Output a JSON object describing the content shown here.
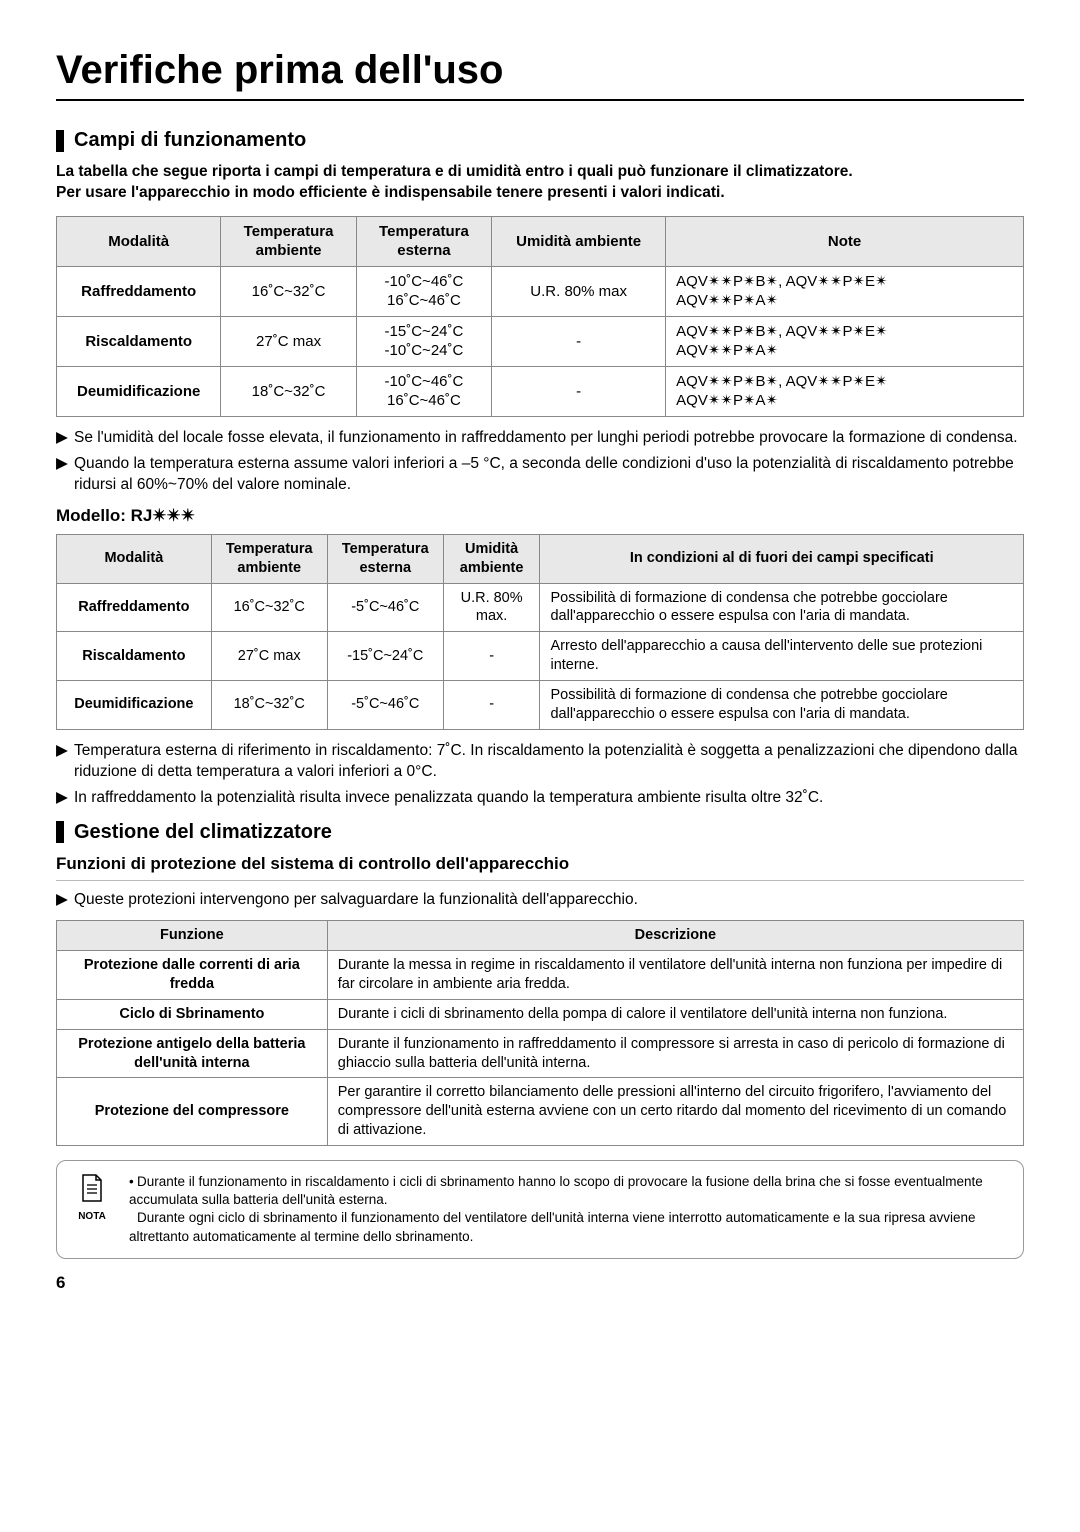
{
  "title": "Verifiche prima dell'uso",
  "section1": {
    "heading": "Campi di funzionamento",
    "intro1": "La tabella che segue riporta i campi di temperatura e di umidità entro i quali può funzionare il climatizzatore.",
    "intro2": "Per usare l'apparecchio in modo efficiente è indispensabile tenere presenti i valori indicati."
  },
  "table1": {
    "headers": [
      "Modalità",
      "Temperatura ambiente",
      "Temperatura esterna",
      "Umidità ambiente",
      "Note"
    ],
    "rows": [
      {
        "mode": "Raffreddamento",
        "amb": "16˚C~32˚C",
        "ext": "-10˚C~46˚C\n16˚C~46˚C",
        "hum": "U.R. 80% max",
        "note": "AQV✴✴P✴B✴, AQV✴✴P✴E✴\nAQV✴✴P✴A✴"
      },
      {
        "mode": "Riscaldamento",
        "amb": "27˚C max",
        "ext": "-15˚C~24˚C\n-10˚C~24˚C",
        "hum": "-",
        "note": "AQV✴✴P✴B✴, AQV✴✴P✴E✴\nAQV✴✴P✴A✴"
      },
      {
        "mode": "Deumidificazione",
        "amb": "18˚C~32˚C",
        "ext": "-10˚C~46˚C\n16˚C~46˚C",
        "hum": "-",
        "note": "AQV✴✴P✴B✴, AQV✴✴P✴E✴\nAQV✴✴P✴A✴"
      }
    ]
  },
  "bullets1": [
    "Se l'umidità del locale fosse elevata, il funzionamento in raffreddamento per lunghi periodi potrebbe provocare la formazione di condensa.",
    "Quando la temperatura esterna assume valori inferiori a –5 °C, a seconda delle condizioni d'uso la potenzialità di riscaldamento potrebbe ridursi al 60%~70% del valore nominale."
  ],
  "modelHeading": "Modello: RJ✴✴✴",
  "table2": {
    "headers": [
      "Modalità",
      "Temperatura ambiente",
      "Temperatura esterna",
      "Umidità ambiente",
      "In condizioni al di fuori dei campi specificati"
    ],
    "rows": [
      {
        "mode": "Raffreddamento",
        "amb": "16˚C~32˚C",
        "ext": "-5˚C~46˚C",
        "hum": "U.R. 80% max.",
        "cond": "Possibilità di formazione di condensa che potrebbe gocciolare dall'apparecchio o essere espulsa con l'aria di mandata."
      },
      {
        "mode": "Riscaldamento",
        "amb": "27˚C max",
        "ext": "-15˚C~24˚C",
        "hum": "-",
        "cond": "Arresto dell'apparecchio a causa dell'intervento delle sue protezioni interne."
      },
      {
        "mode": "Deumidificazione",
        "amb": "18˚C~32˚C",
        "ext": "-5˚C~46˚C",
        "hum": "-",
        "cond": "Possibilità di formazione di condensa che potrebbe gocciolare dall'apparecchio o essere espulsa con l'aria di mandata."
      }
    ]
  },
  "bullets2": [
    "Temperatura esterna di riferimento in riscaldamento: 7˚C. In riscaldamento la potenzialità è soggetta a penalizzazioni che dipendono dalla riduzione di detta temperatura a valori inferiori a 0°C.",
    "In raffreddamento la potenzialità risulta invece penalizzata quando la temperatura ambiente risulta oltre 32˚C."
  ],
  "section2": {
    "heading": "Gestione del climatizzatore",
    "subheading": "Funzioni di protezione del  sistema di controllo dell'apparecchio"
  },
  "bullets3": [
    "Queste protezioni intervengono per salvaguardare la funzionalità dell'apparecchio."
  ],
  "table3": {
    "headers": [
      "Funzione",
      "Descrizione"
    ],
    "rows": [
      {
        "fn": "Protezione dalle correnti di aria fredda",
        "desc": "Durante la messa in regime in riscaldamento il ventilatore dell'unità interna non funziona per impedire di far circolare in ambiente aria fredda."
      },
      {
        "fn": "Ciclo di Sbrinamento",
        "desc": "Durante i cicli di sbrinamento della pompa di calore il ventilatore dell'unità interna non funziona."
      },
      {
        "fn": "Protezione antigelo della batteria dell'unità interna",
        "desc": "Durante il funzionamento in raffreddamento il compressore si arresta in caso di pericolo di formazione di ghiaccio sulla batteria dell'unità interna."
      },
      {
        "fn": "Protezione del compressore",
        "desc": "Per garantire il corretto bilanciamento delle pressioni all'interno del circuito frigorifero, l'avviamento del compressore dell'unità esterna avviene con un certo ritardo dal momento del ricevimento di un comando di attivazione."
      }
    ]
  },
  "noteLabel": "NOTA",
  "noteText1": "Durante il funzionamento in riscaldamento i cicli di sbrinamento hanno lo scopo di provocare la fusione della brina che si fosse eventualmente accumulata sulla batteria dell'unità esterna.",
  "noteText2": "Durante ogni ciclo di sbrinamento il funzionamento del ventilatore dell'unità interna viene interrotto automaticamente e la sua ripresa avviene altrettanto automaticamente al termine dello sbrinamento.",
  "pageNumber": "6"
}
